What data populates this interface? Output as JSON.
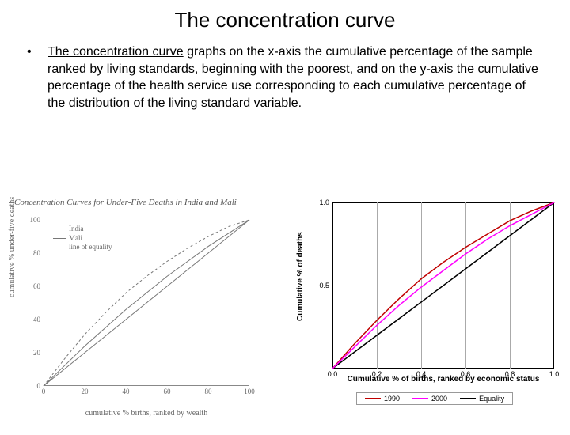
{
  "title": "The concentration curve",
  "bullet": {
    "underlined": "The concentration curve",
    "rest": " graphs on the x-axis the cumulative percentage of the sample ranked by living standards, beginning with the poorest, and on the y-axis the cumulative percentage of the health service use corresponding to each cumulative percentage of the distribution of the living standard variable."
  },
  "left_chart": {
    "type": "line",
    "title": "Concentration Curves for Under-Five Deaths in India and Mali",
    "xlabel": "cumulative % births, ranked by wealth",
    "ylabel": "cumulative % under-five deaths",
    "xlim": [
      0,
      100
    ],
    "ylim": [
      0,
      100
    ],
    "xticks": [
      0,
      20,
      40,
      60,
      80,
      100
    ],
    "yticks": [
      0,
      20,
      40,
      60,
      80,
      100
    ],
    "line_color": "#777777",
    "background_color": "#ffffff",
    "legend": [
      {
        "label": "India",
        "style": "dashed",
        "color": "#777777"
      },
      {
        "label": "Mali",
        "style": "solid",
        "color": "#777777"
      },
      {
        "label": "line of equality",
        "style": "solid",
        "color": "#777777"
      }
    ],
    "series": {
      "equality": [
        [
          0,
          0
        ],
        [
          100,
          100
        ]
      ],
      "india": [
        [
          0,
          0
        ],
        [
          10,
          16
        ],
        [
          20,
          31
        ],
        [
          30,
          44
        ],
        [
          40,
          56
        ],
        [
          50,
          66
        ],
        [
          60,
          75
        ],
        [
          70,
          83
        ],
        [
          80,
          90
        ],
        [
          90,
          96
        ],
        [
          100,
          100
        ]
      ],
      "mali": [
        [
          0,
          0
        ],
        [
          10,
          12
        ],
        [
          20,
          24
        ],
        [
          30,
          35
        ],
        [
          40,
          46
        ],
        [
          50,
          56
        ],
        [
          60,
          66
        ],
        [
          70,
          75
        ],
        [
          80,
          84
        ],
        [
          90,
          92
        ],
        [
          100,
          100
        ]
      ]
    }
  },
  "right_chart": {
    "type": "line",
    "xlabel": "Cumulative % of births, ranked by economic status",
    "ylabel": "Cumulative % of deaths",
    "xlim": [
      0,
      1
    ],
    "ylim": [
      0,
      1
    ],
    "xticks": [
      0.0,
      0.2,
      0.4,
      0.6,
      0.8,
      1.0
    ],
    "yticks": [
      0.5,
      1.0
    ],
    "xtick_labels": [
      "0.0",
      "0.2",
      "0.4",
      "0.6",
      "0.8",
      "1.0"
    ],
    "ytick_labels": [
      "0.5",
      "1.0"
    ],
    "grid_color": "#aaaaaa",
    "border_color": "#000000",
    "background_color": "#ffffff",
    "legend": [
      {
        "label": "1990",
        "color": "#c00000"
      },
      {
        "label": "2000",
        "color": "#ff00ff"
      },
      {
        "label": "Equality",
        "color": "#000000"
      }
    ],
    "series": {
      "equality": [
        [
          0,
          0
        ],
        [
          1,
          1
        ]
      ],
      "1990": [
        [
          0,
          0
        ],
        [
          0.1,
          0.15
        ],
        [
          0.2,
          0.29
        ],
        [
          0.3,
          0.42
        ],
        [
          0.4,
          0.54
        ],
        [
          0.5,
          0.64
        ],
        [
          0.6,
          0.73
        ],
        [
          0.7,
          0.81
        ],
        [
          0.8,
          0.89
        ],
        [
          0.9,
          0.95
        ],
        [
          1,
          1
        ]
      ],
      "2000": [
        [
          0,
          0
        ],
        [
          0.1,
          0.13
        ],
        [
          0.2,
          0.26
        ],
        [
          0.3,
          0.38
        ],
        [
          0.4,
          0.49
        ],
        [
          0.5,
          0.59
        ],
        [
          0.6,
          0.69
        ],
        [
          0.7,
          0.78
        ],
        [
          0.8,
          0.86
        ],
        [
          0.9,
          0.93
        ],
        [
          1,
          1
        ]
      ]
    }
  }
}
